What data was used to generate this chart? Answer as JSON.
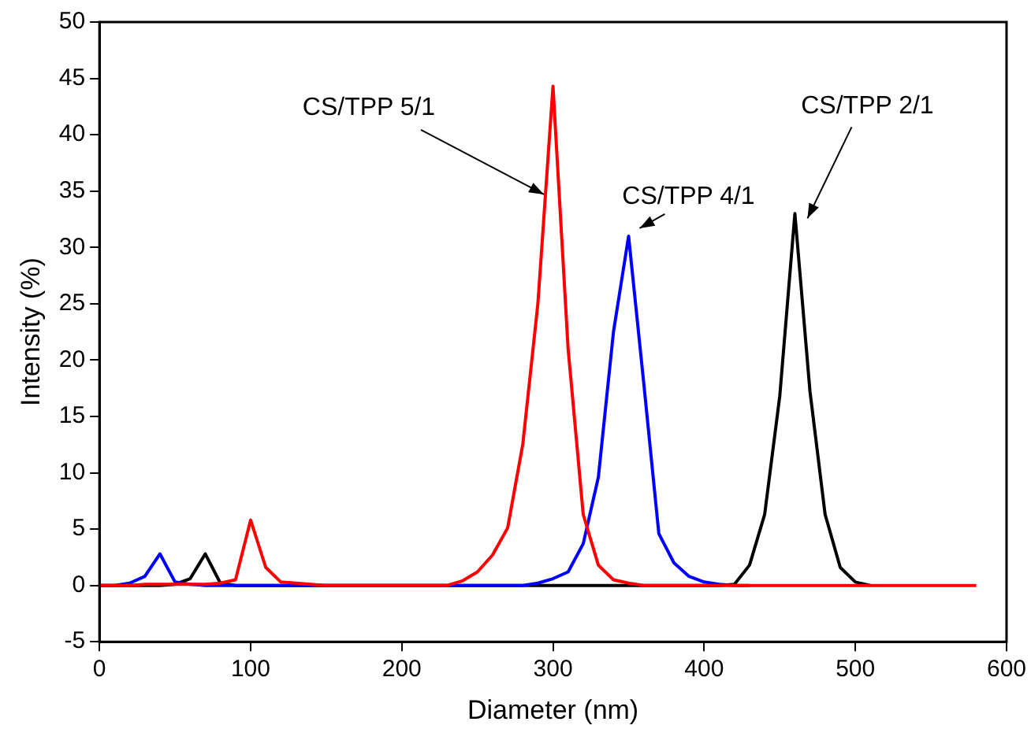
{
  "chart_data": {
    "type": "line",
    "xlabel": "Diameter (nm)",
    "ylabel": "Intensity (%)",
    "x": [
      0,
      10,
      20,
      30,
      40,
      50,
      60,
      70,
      80,
      90,
      100,
      110,
      120,
      130,
      140,
      150,
      160,
      170,
      180,
      190,
      200,
      210,
      220,
      230,
      240,
      250,
      260,
      270,
      280,
      290,
      300,
      310,
      320,
      330,
      340,
      350,
      360,
      370,
      380,
      390,
      400,
      410,
      420,
      430,
      440,
      450,
      460,
      470,
      480,
      490,
      500,
      510,
      520,
      530,
      540,
      550,
      560,
      570,
      580
    ],
    "series": [
      {
        "color": "#000000",
        "values": [
          0,
          0,
          0,
          0,
          0,
          0.1,
          0.6,
          2.8,
          0.2,
          0,
          0,
          0,
          0,
          0,
          0,
          0,
          0,
          0,
          0,
          0,
          0,
          0,
          0,
          0,
          0,
          0,
          0,
          0,
          0,
          0,
          0,
          0,
          0,
          0,
          0,
          0,
          0,
          0,
          0,
          0,
          0,
          0,
          0.1,
          1.8,
          6.3,
          16.8,
          33,
          17.2,
          6.3,
          1.6,
          0.3,
          0,
          null,
          null,
          null,
          null,
          null,
          null,
          null
        ]
      },
      {
        "color": "#0000ff",
        "values": [
          0,
          0,
          0.2,
          0.8,
          2.8,
          0.3,
          0.1,
          0,
          0,
          0,
          0,
          0,
          0,
          0,
          0,
          0,
          0,
          0,
          0,
          0,
          0,
          0,
          0,
          0,
          0,
          0,
          0,
          0,
          0,
          0.2,
          0.6,
          1.2,
          3.7,
          9.6,
          22.5,
          31,
          18,
          4.6,
          2,
          0.8,
          0.3,
          0.1,
          0,
          0,
          null,
          null,
          null,
          null,
          null,
          null,
          null,
          null,
          null,
          null,
          null,
          null,
          null,
          null,
          null
        ]
      },
      {
        "color": "#ff0000",
        "values": [
          0,
          0,
          0,
          0.1,
          0.1,
          0.1,
          0.1,
          0.1,
          0.2,
          0.5,
          5.8,
          1.6,
          0.3,
          0.2,
          0.1,
          0,
          0,
          0,
          0,
          0,
          0,
          0,
          0,
          0,
          0.4,
          1.2,
          2.7,
          5.1,
          12.5,
          25,
          44.3,
          21,
          6.3,
          1.8,
          0.5,
          0.2,
          0,
          0,
          0,
          0,
          0,
          0,
          0,
          0,
          0,
          0,
          0,
          0,
          0,
          0,
          0,
          0,
          0,
          0,
          0,
          0,
          0,
          0,
          0
        ]
      }
    ],
    "xlim": [
      0,
      600
    ],
    "xticks": [
      0,
      100,
      200,
      300,
      400,
      500,
      600
    ],
    "ylim": [
      -5,
      50
    ],
    "yticks": [
      -5,
      0,
      5,
      10,
      15,
      20,
      25,
      30,
      35,
      40,
      45,
      50
    ],
    "grid": false,
    "legend": false,
    "marker": "none",
    "line_style": "solid",
    "annotations": [
      {
        "text": "CS/TPP 5/1",
        "x": 295,
        "y": 34.7
      },
      {
        "text": "CS/TPP 4/1",
        "x": 350,
        "y": 31
      },
      {
        "text": "CS/TPP 2/1",
        "x": 460,
        "y": 33
      }
    ]
  }
}
